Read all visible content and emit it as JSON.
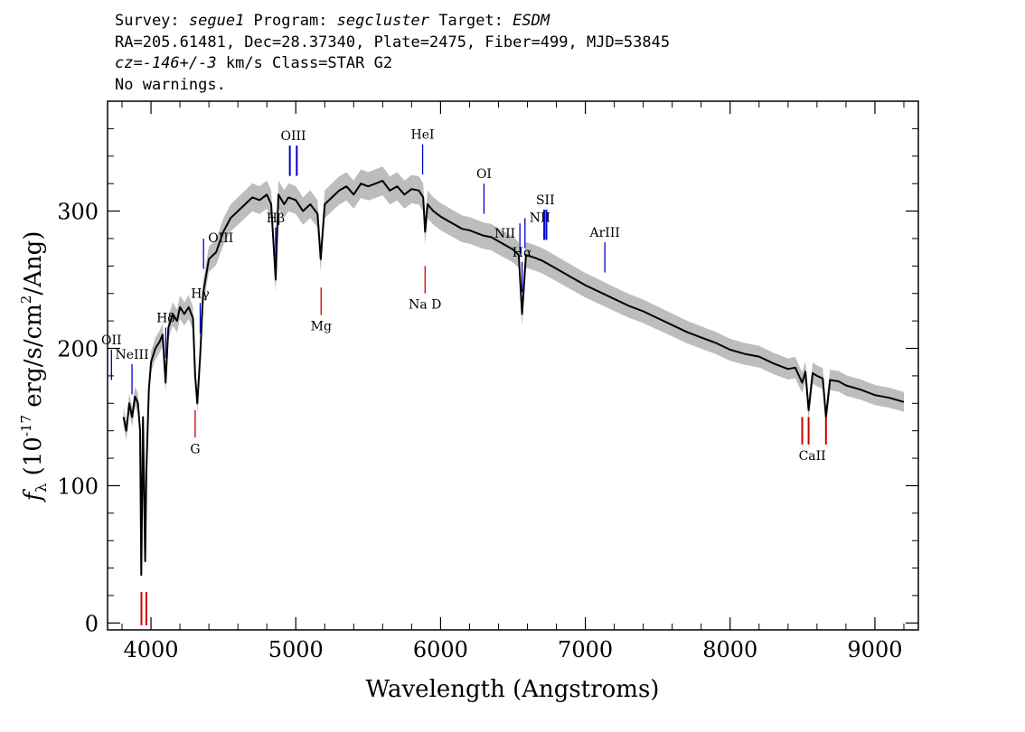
{
  "header": {
    "survey_label": "Survey: ",
    "survey": "segue1",
    "program_label": " Program: ",
    "program": "segcluster",
    "target_label": " Target: ",
    "target": "ESDM",
    "line2": "RA=205.61481, Dec=28.37340, Plate=2475, Fiber=499, MJD=53845",
    "cz_label": "cz=",
    "cz_value": "-146+/-3",
    "cz_rest": " km/s Class=STAR G2",
    "line4": "No warnings."
  },
  "chart_data": {
    "type": "line",
    "xlabel": "Wavelength (Angstroms)",
    "ylabel": "f_λ (10^-17 erg/s/cm^2/Ang)",
    "xlim": [
      3700,
      9300
    ],
    "ylim": [
      -5,
      380
    ],
    "xticks": [
      4000,
      5000,
      6000,
      7000,
      8000,
      9000
    ],
    "yticks": [
      0,
      100,
      200,
      300
    ],
    "colors": {
      "spectrum": "#000000",
      "error_band": "#bdbdbd",
      "emission": "#0000cc",
      "absorption": "#cc0000"
    },
    "series": [
      {
        "x": [
          3810,
          3830,
          3850,
          3870,
          3890,
          3910,
          3925,
          3933,
          3945,
          3960,
          3968,
          3985,
          4000,
          4030,
          4060,
          4080,
          4101,
          4120,
          4150,
          4180,
          4200,
          4230,
          4260,
          4290,
          4305,
          4320,
          4340,
          4360,
          4400,
          4450,
          4500,
          4550,
          4600,
          4650,
          4700,
          4750,
          4800,
          4830,
          4861,
          4880,
          4920,
          4950,
          5000,
          5050,
          5100,
          5150,
          5172,
          5200,
          5250,
          5300,
          5350,
          5400,
          5450,
          5500,
          5550,
          5600,
          5650,
          5700,
          5750,
          5800,
          5850,
          5880,
          5893,
          5910,
          5950,
          6000,
          6050,
          6100,
          6150,
          6200,
          6250,
          6300,
          6350,
          6400,
          6450,
          6500,
          6540,
          6563,
          6590,
          6650,
          6700,
          6750,
          6800,
          6900,
          7000,
          7100,
          7200,
          7300,
          7400,
          7500,
          7600,
          7700,
          7800,
          7900,
          8000,
          8100,
          8200,
          8300,
          8400,
          8450,
          8498,
          8520,
          8542,
          8570,
          8600,
          8640,
          8662,
          8690,
          8750,
          8800,
          8900,
          9000,
          9100,
          9200
        ],
        "values": [
          150,
          140,
          160,
          150,
          165,
          160,
          140,
          35,
          150,
          45,
          110,
          170,
          190,
          200,
          205,
          210,
          175,
          215,
          225,
          220,
          230,
          225,
          230,
          222,
          180,
          160,
          195,
          240,
          265,
          270,
          285,
          295,
          300,
          305,
          310,
          308,
          312,
          305,
          250,
          312,
          305,
          310,
          308,
          300,
          305,
          298,
          265,
          305,
          310,
          315,
          318,
          312,
          320,
          318,
          320,
          322,
          315,
          318,
          312,
          316,
          315,
          310,
          285,
          305,
          300,
          296,
          293,
          290,
          287,
          286,
          284,
          282,
          281,
          278,
          275,
          272,
          268,
          225,
          268,
          266,
          264,
          261,
          258,
          252,
          246,
          241,
          236,
          231,
          227,
          222,
          217,
          212,
          208,
          204,
          199,
          196,
          194,
          189,
          185,
          186,
          175,
          183,
          155,
          182,
          180,
          178,
          150,
          177,
          176,
          173,
          170,
          166,
          164,
          161
        ]
      }
    ],
    "annotations": [
      {
        "label": "NeIII",
        "x": 3869,
        "kind": "emission",
        "shape": "single",
        "label_pos": "above"
      },
      {
        "label": "OII",
        "x": 3727,
        "kind": "emission",
        "shape": "single",
        "label_pos": "above"
      },
      {
        "label": "Hδ",
        "x": 4102,
        "kind": "emission",
        "shape": "single",
        "label_pos": "above"
      },
      {
        "label": "Hγ",
        "x": 4340,
        "kind": "emission",
        "shape": "single",
        "label_pos": "above"
      },
      {
        "label": "OIII",
        "x": 4363,
        "kind": "emission",
        "shape": "single",
        "label_pos": "right"
      },
      {
        "label": "Hβ",
        "x": 4861,
        "kind": "emission",
        "shape": "single",
        "label_pos": "above"
      },
      {
        "label": "OIII",
        "x": 4959,
        "x2": 5007,
        "kind": "emission",
        "shape": "double",
        "label_pos": "above"
      },
      {
        "label": "HeI",
        "x": 5876,
        "kind": "emission",
        "shape": "single",
        "label_pos": "above"
      },
      {
        "label": "OI",
        "x": 6300,
        "kind": "emission",
        "shape": "single",
        "label_pos": "above"
      },
      {
        "label": "NII",
        "x": 6548,
        "kind": "emission",
        "shape": "single",
        "label_pos": "left"
      },
      {
        "label": "Hα",
        "x": 6563,
        "kind": "emission",
        "shape": "single",
        "label_pos": "above"
      },
      {
        "label": "NII",
        "x": 6583,
        "kind": "emission",
        "shape": "single",
        "label_pos": "right"
      },
      {
        "label": "SII",
        "x": 6716,
        "x2": 6731,
        "kind": "emission",
        "shape": "double",
        "label_pos": "above"
      },
      {
        "label": "ArIII",
        "x": 7135,
        "kind": "emission",
        "shape": "single",
        "label_pos": "above"
      },
      {
        "label": "G",
        "x": 4305,
        "kind": "absorption",
        "shape": "single",
        "label_pos": "below"
      },
      {
        "label": "Mg",
        "x": 5175,
        "kind": "absorption",
        "shape": "single",
        "label_pos": "below"
      },
      {
        "label": "Na D",
        "x": 5893,
        "kind": "absorption",
        "shape": "single",
        "label_pos": "below"
      },
      {
        "label": "CaII",
        "x": 8498,
        "x2": 8542,
        "x3": 8662,
        "kind": "absorption",
        "shape": "triple",
        "label_pos": "below"
      },
      {
        "label": "",
        "x": 3934,
        "x2": 3968,
        "kind": "absorption",
        "shape": "double",
        "label_pos": "none"
      }
    ]
  }
}
